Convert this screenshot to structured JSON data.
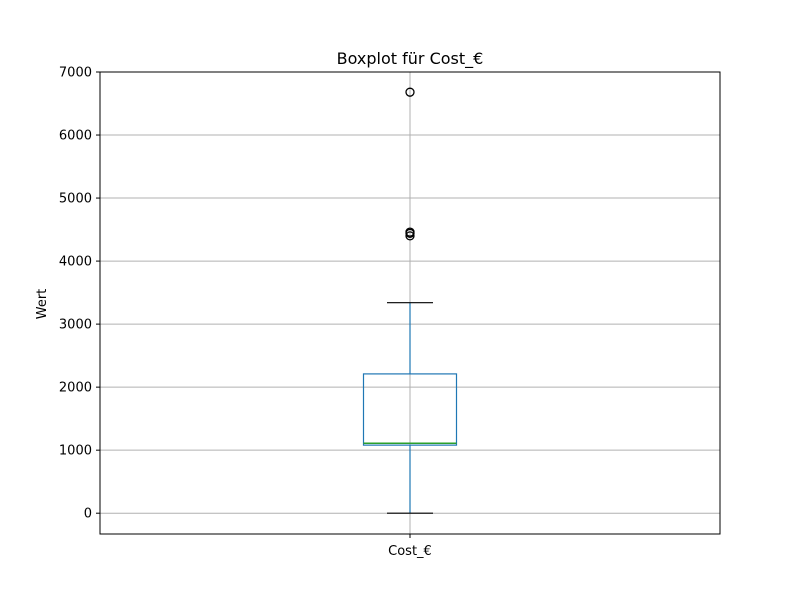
{
  "chart_data": {
    "type": "boxplot",
    "title": "Boxplot für Cost_€",
    "ylabel": "Wert",
    "xlabel": "",
    "categories": [
      "Cost_€"
    ],
    "ylim": [
      -330,
      7000
    ],
    "yticks": [
      0,
      1000,
      2000,
      3000,
      4000,
      5000,
      6000,
      7000
    ],
    "ytick_labels": [
      "0",
      "1000",
      "2000",
      "3000",
      "4000",
      "5000",
      "6000",
      "7000"
    ],
    "grid": true,
    "boxes": [
      {
        "name": "Cost_€",
        "whisker_low": 0,
        "q1": 1080,
        "median": 1110,
        "q3": 2210,
        "whisker_high": 3340,
        "outliers": [
          4400,
          4440,
          4460,
          6680
        ]
      }
    ],
    "colors": {
      "box": "#1f77b4",
      "median": "#2ca02c",
      "whisker": "#1f77b4",
      "cap": "#000000",
      "outlier": "#000000",
      "grid": "#b0b0b0"
    }
  }
}
